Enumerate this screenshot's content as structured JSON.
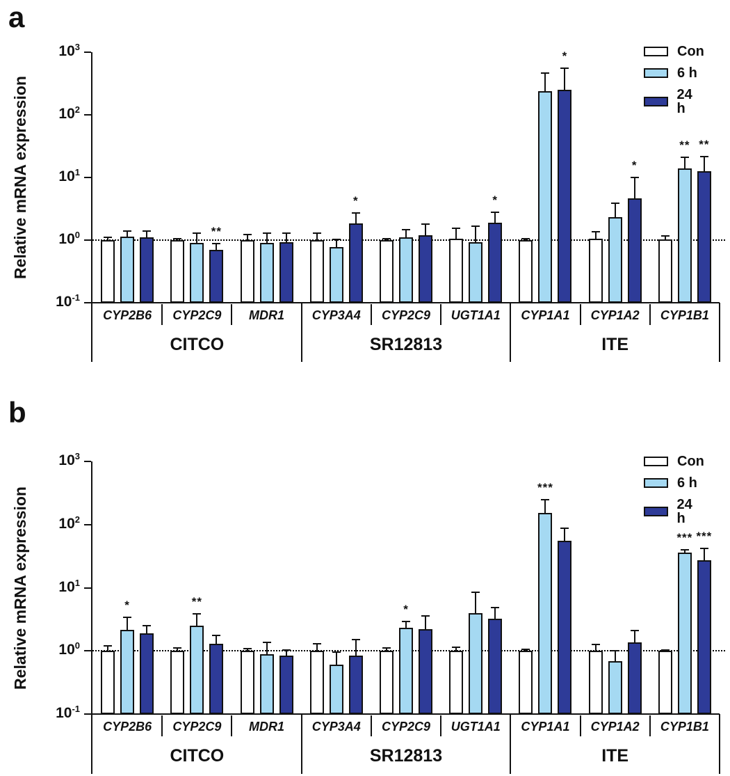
{
  "figure": {
    "panel_letters": [
      "a",
      "b"
    ]
  },
  "chart_data": [
    {
      "panel": "a",
      "type": "bar",
      "yscale": "log",
      "ylim": [
        0.1,
        1000
      ],
      "ylabel": "Relative mRNA expression",
      "ytick_exponents": [
        3,
        2,
        1,
        0,
        -1
      ],
      "grid": false,
      "reference_line": 1,
      "legend_position": "top-right",
      "legend": [
        {
          "label": "Con",
          "color": "#ffffff"
        },
        {
          "label": "6 h",
          "color": "#a5d9f2"
        },
        {
          "label": "24 h",
          "color": "#2e3b98"
        }
      ],
      "series_names": [
        "Con",
        "6 h",
        "24 h"
      ],
      "groups": [
        {
          "label": "CITCO",
          "genes": [
            {
              "name": "CYP2B6",
              "values": [
                1.0,
                1.15,
                1.1
              ],
              "errors_upper": [
                1.12,
                1.4,
                1.4
              ],
              "significance": [
                "",
                "",
                ""
              ]
            },
            {
              "name": "CYP2C9",
              "values": [
                1.0,
                0.9,
                0.7
              ],
              "errors_upper": [
                1.04,
                1.3,
                0.88
              ],
              "significance": [
                "",
                "",
                "**"
              ]
            },
            {
              "name": "MDR1",
              "values": [
                1.0,
                0.9,
                0.92
              ],
              "errors_upper": [
                1.22,
                1.28,
                1.3
              ],
              "significance": [
                "",
                "",
                ""
              ]
            }
          ]
        },
        {
          "label": "SR12813",
          "genes": [
            {
              "name": "CYP3A4",
              "values": [
                1.0,
                0.78,
                1.85
              ],
              "errors_upper": [
                1.28,
                1.02,
                2.7
              ],
              "significance": [
                "",
                "",
                "*"
              ]
            },
            {
              "name": "CYP2C9",
              "values": [
                1.0,
                1.1,
                1.2
              ],
              "errors_upper": [
                1.06,
                1.45,
                1.8
              ],
              "significance": [
                "",
                "",
                ""
              ]
            },
            {
              "name": "UGT1A1",
              "values": [
                1.05,
                0.92,
                1.9
              ],
              "errors_upper": [
                1.55,
                1.65,
                2.8
              ],
              "significance": [
                "",
                "",
                "*"
              ]
            }
          ]
        },
        {
          "label": "ITE",
          "genes": [
            {
              "name": "CYP1A1",
              "values": [
                1.0,
                240,
                250
              ],
              "errors_upper": [
                1.06,
                460,
                550
              ],
              "significance": [
                "",
                "",
                "*"
              ]
            },
            {
              "name": "CYP1A2",
              "values": [
                1.05,
                2.3,
                4.7
              ],
              "errors_upper": [
                1.35,
                3.9,
                9.9
              ],
              "significance": [
                "",
                "",
                "*"
              ]
            },
            {
              "name": "CYP1B1",
              "values": [
                1.02,
                13.8,
                12.5
              ],
              "errors_upper": [
                1.18,
                21,
                21.5
              ],
              "significance": [
                "",
                "**",
                "**"
              ]
            }
          ]
        }
      ]
    },
    {
      "panel": "b",
      "type": "bar",
      "yscale": "log",
      "ylim": [
        0.1,
        1000
      ],
      "ylabel": "Relative mRNA expression",
      "ytick_exponents": [
        3,
        2,
        1,
        0,
        -1
      ],
      "grid": false,
      "reference_line": 1,
      "legend_position": "top-right",
      "legend": [
        {
          "label": "Con",
          "color": "#ffffff"
        },
        {
          "label": "6 h",
          "color": "#a5d9f2"
        },
        {
          "label": "24 h",
          "color": "#2e3b98"
        }
      ],
      "series_names": [
        "Con",
        "6 h",
        "24 h"
      ],
      "groups": [
        {
          "label": "CITCO",
          "genes": [
            {
              "name": "CYP2B6",
              "values": [
                1.0,
                2.15,
                1.9
              ],
              "errors_upper": [
                1.2,
                3.4,
                2.5
              ],
              "significance": [
                "",
                "*",
                ""
              ]
            },
            {
              "name": "CYP2C9",
              "values": [
                1.0,
                2.5,
                1.3
              ],
              "errors_upper": [
                1.12,
                3.9,
                1.75
              ],
              "significance": [
                "",
                "**",
                ""
              ]
            },
            {
              "name": "MDR1",
              "values": [
                1.0,
                0.88,
                0.85
              ],
              "errors_upper": [
                1.08,
                1.35,
                1.02
              ],
              "significance": [
                "",
                "",
                ""
              ]
            }
          ]
        },
        {
          "label": "SR12813",
          "genes": [
            {
              "name": "CYP3A4",
              "values": [
                1.0,
                0.6,
                0.85
              ],
              "errors_upper": [
                1.3,
                0.95,
                1.5
              ],
              "significance": [
                "",
                "",
                ""
              ]
            },
            {
              "name": "CYP2C9",
              "values": [
                1.0,
                2.3,
                2.2
              ],
              "errors_upper": [
                1.1,
                2.9,
                3.6
              ],
              "significance": [
                "",
                "*",
                ""
              ]
            },
            {
              "name": "UGT1A1",
              "values": [
                1.0,
                4.0,
                3.2
              ],
              "errors_upper": [
                1.15,
                8.5,
                4.9
              ],
              "significance": [
                "",
                "",
                ""
              ]
            }
          ]
        },
        {
          "label": "ITE",
          "genes": [
            {
              "name": "CYP1A1",
              "values": [
                1.0,
                152,
                55
              ],
              "errors_upper": [
                1.07,
                250,
                87
              ],
              "significance": [
                "",
                "***",
                ""
              ]
            },
            {
              "name": "CYP1A2",
              "values": [
                1.0,
                0.68,
                1.35
              ],
              "errors_upper": [
                1.28,
                1.0,
                2.1
              ],
              "significance": [
                "",
                "",
                ""
              ]
            },
            {
              "name": "CYP1B1",
              "values": [
                1.0,
                36,
                27
              ],
              "errors_upper": [
                1.04,
                40,
                42
              ],
              "significance": [
                "",
                "***",
                "***"
              ]
            }
          ]
        }
      ]
    }
  ]
}
